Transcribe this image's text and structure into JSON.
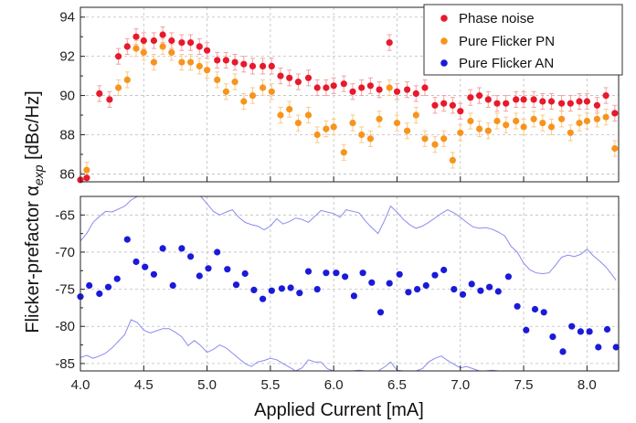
{
  "chart_data": {
    "type": "scatter",
    "xlabel": "Applied Current [mA]",
    "ylabel_prefix": "Flicker-prefactor α",
    "ylabel_sub": "exp",
    "ylabel_suffix": " [dBc/Hz]",
    "xlim": [
      4.0,
      8.25
    ],
    "x_ticks": [
      "4.0",
      "4.5",
      "5.0",
      "5.5",
      "6.0",
      "6.5",
      "7.0",
      "7.5",
      "8.0"
    ],
    "grid": true,
    "legend_position": "top-right",
    "colors": {
      "phase": "#e8192c",
      "pure_pn": "#f7941d",
      "pure_an": "#1a1adb",
      "errorbar_phase": "#f4a0a0",
      "errorbar_pn": "#f9c98a",
      "band": "#8a8af0",
      "grid": "#bdbdbd"
    },
    "panels": [
      {
        "name": "top",
        "ylim": [
          85.6,
          94.5
        ],
        "y_ticks": [
          86,
          88,
          90,
          92,
          94
        ],
        "y_tick_labels": [
          "86",
          "88",
          "90",
          "92",
          "94"
        ]
      },
      {
        "name": "bottom",
        "ylim": [
          -86,
          -62.5
        ],
        "y_ticks": [
          -85,
          -80,
          -75,
          -70,
          -65
        ],
        "y_tick_labels": [
          "-85",
          "-80",
          "-75",
          "-70",
          "-65"
        ]
      }
    ],
    "series": [
      {
        "name": "Phase noise",
        "panel": "top",
        "color_key": "phase",
        "err": 0.4,
        "x": [
          4.0,
          4.05,
          4.15,
          4.23,
          4.3,
          4.37,
          4.44,
          4.5,
          4.58,
          4.65,
          4.72,
          4.8,
          4.87,
          4.94,
          5.0,
          5.08,
          5.15,
          5.22,
          5.29,
          5.36,
          5.44,
          5.51,
          5.58,
          5.65,
          5.72,
          5.8,
          5.87,
          5.94,
          6.0,
          6.08,
          6.15,
          6.22,
          6.29,
          6.36,
          6.44,
          6.5,
          6.58,
          6.65,
          6.72,
          6.8,
          6.87,
          6.94,
          7.0,
          7.08,
          7.15,
          7.22,
          7.29,
          7.36,
          7.44,
          7.5,
          7.58,
          7.65,
          7.72,
          7.8,
          7.87,
          7.94,
          8.0,
          8.08,
          8.15,
          8.22
        ],
        "y": [
          85.7,
          85.8,
          90.1,
          89.8,
          92.0,
          92.5,
          93.0,
          92.8,
          92.8,
          93.1,
          92.8,
          92.7,
          92.7,
          92.5,
          92.3,
          91.8,
          91.8,
          91.7,
          91.6,
          91.5,
          91.5,
          91.5,
          91.0,
          90.9,
          90.7,
          90.9,
          90.4,
          90.4,
          90.5,
          90.6,
          90.2,
          90.4,
          90.5,
          90.3,
          92.7,
          90.2,
          90.3,
          90.1,
          90.4,
          89.5,
          89.6,
          89.5,
          89.2,
          89.9,
          90.0,
          89.8,
          89.6,
          89.6,
          89.8,
          89.8,
          89.8,
          89.7,
          89.7,
          89.6,
          89.6,
          89.7,
          89.7,
          89.5,
          90.0,
          89.1
        ]
      },
      {
        "name": "Pure Flicker PN",
        "panel": "top",
        "color_key": "pure_pn",
        "err": 0.4,
        "x": [
          4.05,
          4.3,
          4.37,
          4.44,
          4.5,
          4.58,
          4.65,
          4.72,
          4.8,
          4.87,
          4.94,
          5.0,
          5.08,
          5.15,
          5.22,
          5.29,
          5.36,
          5.44,
          5.51,
          5.58,
          5.65,
          5.72,
          5.8,
          5.87,
          5.94,
          6.0,
          6.08,
          6.15,
          6.22,
          6.29,
          6.36,
          6.44,
          6.5,
          6.58,
          6.65,
          6.72,
          6.8,
          6.87,
          6.94,
          7.0,
          7.08,
          7.15,
          7.22,
          7.29,
          7.36,
          7.44,
          7.5,
          7.58,
          7.65,
          7.72,
          7.8,
          7.87,
          7.94,
          8.0,
          8.08,
          8.15,
          8.22
        ],
        "y": [
          86.2,
          90.4,
          90.8,
          92.4,
          92.2,
          91.7,
          92.5,
          92.2,
          91.7,
          91.7,
          91.5,
          91.3,
          90.8,
          90.2,
          90.7,
          89.7,
          90.0,
          90.4,
          90.2,
          89.0,
          89.3,
          88.6,
          89.0,
          88.0,
          88.3,
          88.4,
          87.1,
          88.6,
          88.0,
          87.8,
          88.8,
          90.4,
          88.6,
          88.2,
          89.0,
          87.8,
          87.5,
          87.8,
          86.7,
          88.1,
          88.7,
          88.3,
          88.2,
          88.7,
          88.5,
          88.7,
          88.4,
          88.8,
          88.6,
          88.4,
          88.8,
          88.1,
          88.6,
          88.7,
          88.8,
          88.9,
          87.3
        ]
      },
      {
        "name": "Pure Flicker AN",
        "panel": "bottom",
        "color_key": "pure_an",
        "x": [
          4.0,
          4.07,
          4.15,
          4.22,
          4.29,
          4.37,
          4.44,
          4.51,
          4.58,
          4.65,
          4.73,
          4.8,
          4.87,
          4.94,
          5.01,
          5.08,
          5.16,
          5.23,
          5.3,
          5.37,
          5.44,
          5.51,
          5.59,
          5.66,
          5.73,
          5.8,
          5.87,
          5.94,
          6.02,
          6.09,
          6.16,
          6.23,
          6.3,
          6.37,
          6.44,
          6.52,
          6.59,
          6.66,
          6.73,
          6.8,
          6.87,
          6.95,
          7.02,
          7.09,
          7.16,
          7.23,
          7.3,
          7.38,
          7.45,
          7.52,
          7.59,
          7.66,
          7.73,
          7.81,
          7.88,
          7.95,
          8.02,
          8.09,
          8.16,
          8.23
        ],
        "y": [
          -76.0,
          -74.5,
          -75.6,
          -74.7,
          -73.6,
          -68.3,
          -71.3,
          -72.0,
          -73.0,
          -69.5,
          -74.5,
          -69.5,
          -70.6,
          -73.2,
          -72.2,
          -70.0,
          -72.3,
          -74.4,
          -72.9,
          -75.1,
          -76.3,
          -75.2,
          -74.9,
          -74.8,
          -75.5,
          -72.6,
          -75.0,
          -72.8,
          -72.8,
          -73.3,
          -75.9,
          -72.8,
          -74.1,
          -78.1,
          -74.2,
          -73.0,
          -75.4,
          -75.0,
          -74.5,
          -73.1,
          -72.4,
          -75.0,
          -75.7,
          -74.3,
          -75.2,
          -74.7,
          -75.3,
          -73.3,
          -77.3,
          -80.5,
          -77.7,
          -78.1,
          -81.4,
          -83.4,
          -80.0,
          -80.7,
          -80.7,
          -82.8,
          -80.4,
          -82.8
        ]
      }
    ],
    "band": {
      "panel": "bottom",
      "x": [
        4.0,
        4.05,
        4.1,
        4.15,
        4.2,
        4.25,
        4.3,
        4.35,
        4.4,
        4.45,
        4.5,
        4.55,
        4.6,
        4.65,
        4.7,
        4.75,
        4.8,
        4.85,
        4.9,
        4.95,
        5.0,
        5.05,
        5.1,
        5.15,
        5.2,
        5.25,
        5.3,
        5.35,
        5.4,
        5.45,
        5.5,
        5.55,
        5.6,
        5.65,
        5.7,
        5.75,
        5.8,
        5.85,
        5.9,
        5.95,
        6.0,
        6.05,
        6.1,
        6.15,
        6.2,
        6.25,
        6.3,
        6.35,
        6.4,
        6.45,
        6.5,
        6.55,
        6.6,
        6.65,
        6.7,
        6.75,
        6.8,
        6.85,
        6.9,
        6.95,
        7.0,
        7.05,
        7.1,
        7.15,
        7.2,
        7.25,
        7.3,
        7.35,
        7.4,
        7.45,
        7.5,
        7.55,
        7.6,
        7.65,
        7.7,
        7.75,
        7.8,
        7.85,
        7.9,
        7.95,
        8.0,
        8.05,
        8.1,
        8.15,
        8.2,
        8.23
      ],
      "upper": [
        -68.5,
        -67.5,
        -66.0,
        -65.2,
        -64.5,
        -64.6,
        -64.2,
        -63.8,
        -63.0,
        -62.5,
        -62.5,
        -62.5,
        -62.5,
        -62.5,
        -62.5,
        -62.5,
        -62.5,
        -62.5,
        -62.5,
        -62.5,
        -63.5,
        -64.5,
        -65.0,
        -64.6,
        -64.3,
        -65.3,
        -66.0,
        -66.3,
        -66.5,
        -67.0,
        -66.5,
        -65.5,
        -66.2,
        -65.9,
        -65.4,
        -65.6,
        -66.0,
        -65.2,
        -64.4,
        -64.6,
        -64.8,
        -65.3,
        -64.3,
        -64.5,
        -64.7,
        -65.8,
        -66.7,
        -67.5,
        -65.8,
        -63.8,
        -64.6,
        -65.6,
        -66.3,
        -66.8,
        -66.5,
        -66.0,
        -65.4,
        -64.8,
        -64.3,
        -64.7,
        -65.3,
        -66.0,
        -66.6,
        -66.8,
        -66.7,
        -66.9,
        -67.3,
        -67.8,
        -69.2,
        -70.0,
        -71.5,
        -72.4,
        -72.8,
        -72.9,
        -72.8,
        -71.8,
        -70.7,
        -70.4,
        -70.6,
        -70.3,
        -69.6,
        -70.5,
        -71.2,
        -72.0,
        -73.1,
        -73.8
      ],
      "lower": [
        -84.2,
        -83.9,
        -84.3,
        -84.0,
        -83.6,
        -82.9,
        -82.0,
        -81.1,
        -79.1,
        -79.5,
        -80.5,
        -80.9,
        -80.6,
        -80.3,
        -80.3,
        -80.8,
        -81.4,
        -82.6,
        -81.9,
        -82.6,
        -83.5,
        -83.1,
        -82.5,
        -82.9,
        -83.6,
        -84.3,
        -85.0,
        -85.4,
        -84.8,
        -84.6,
        -84.3,
        -84.5,
        -85.0,
        -85.5,
        -86.0,
        -85.6,
        -84.5,
        -84.8,
        -84.8,
        -85.7,
        -86.0,
        -86.0,
        -86.0,
        -86.0,
        -85.9,
        -86.0,
        -86.0,
        -86.0,
        -85.5,
        -84.8,
        -85.9,
        -86.0,
        -86.0,
        -86.0,
        -85.7,
        -84.8,
        -84.3,
        -84.0,
        -84.6,
        -85.1,
        -85.6,
        -85.4,
        -85.7,
        -86.0,
        -86.0,
        -85.9,
        -86.0,
        -86.0,
        -86.0,
        -86.0,
        -86.0,
        -86.0,
        -86.0,
        -86.0,
        -86.0,
        -86.0,
        -86.0,
        -86.0,
        -86.0,
        -86.0,
        -86.0,
        -86.0,
        -86.0,
        -86.0,
        -86.0,
        -86.0
      ]
    }
  }
}
